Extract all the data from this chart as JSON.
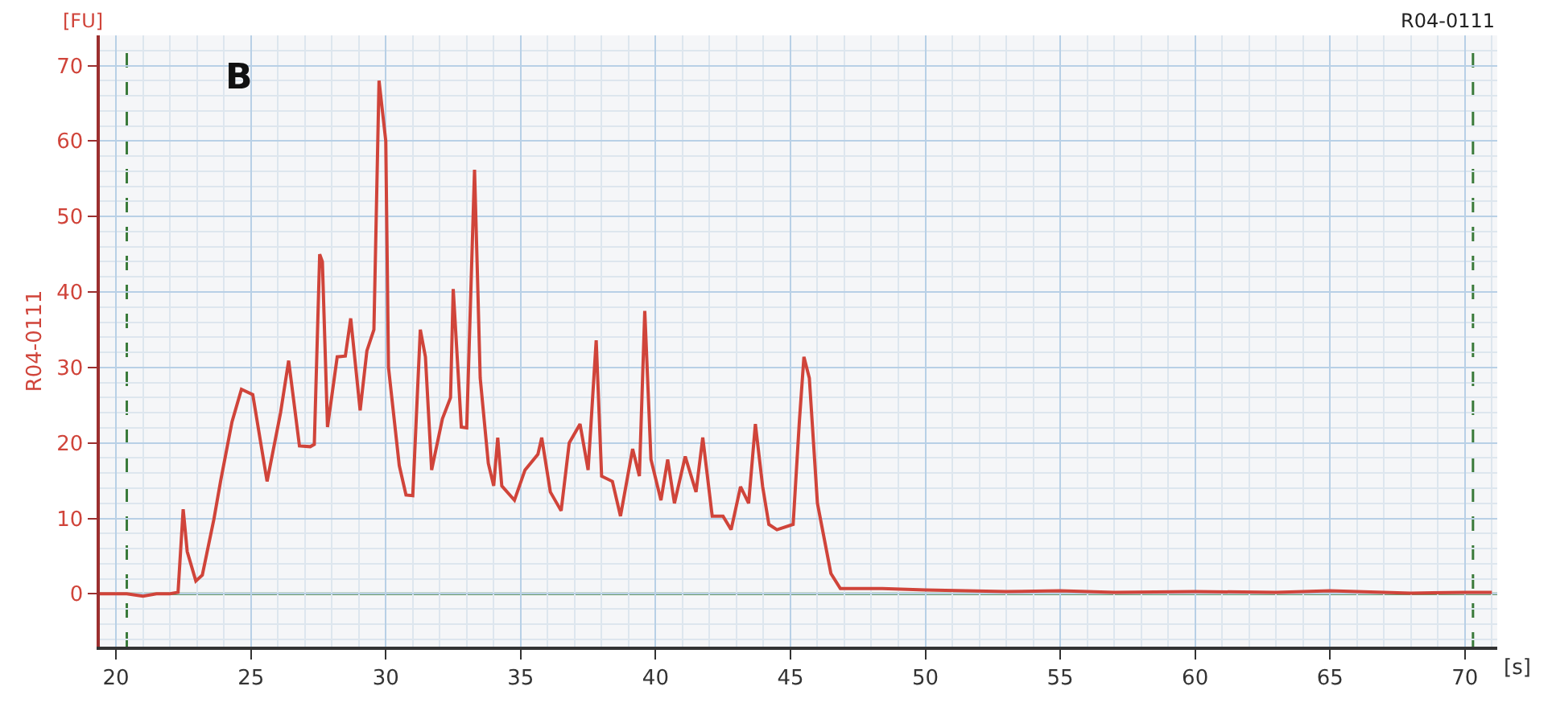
{
  "chart_data": {
    "type": "line",
    "xlabel": "[s]",
    "ylabel": "R04-0111",
    "annotations": [
      "[FU]",
      "B",
      "R04-0111"
    ],
    "series": [
      {
        "color": "#d0443a",
        "x": [
          19.4,
          20.4,
          21,
          21.5,
          22,
          22.3,
          22.49,
          22.64,
          22.96,
          23.2,
          23.63,
          23.88,
          24.3,
          24.65,
          25.07,
          25.6,
          26.1,
          26.4,
          26.8,
          27.2,
          27.35,
          27.55,
          27.65,
          27.84,
          28.2,
          28.5,
          28.7,
          29.05,
          29.3,
          29.56,
          29.75,
          30.0,
          30.1,
          30.5,
          30.75,
          31.0,
          31.28,
          31.47,
          31.7,
          32.1,
          32.4,
          32.5,
          32.8,
          33.0,
          33.29,
          33.4,
          33.5,
          33.8,
          34.0,
          34.15,
          34.3,
          34.77,
          35.16,
          35.64,
          35.78,
          36.1,
          36.5,
          36.8,
          37.2,
          37.5,
          37.8,
          38.0,
          38.4,
          38.7,
          39.15,
          39.4,
          39.6,
          39.83,
          40.2,
          40.45,
          40.7,
          41.1,
          41.5,
          41.75,
          42.1,
          42.5,
          42.8,
          43.15,
          43.45,
          43.7,
          43.97,
          44.2,
          44.5,
          45.1,
          45.33,
          45.5,
          45.7,
          46.0,
          46.5,
          46.85,
          48.4,
          50,
          53,
          55,
          57,
          60,
          63,
          65,
          68,
          70,
          71
        ],
        "values": [
          0,
          0,
          -0.3,
          0,
          0,
          0.2,
          11.2,
          5.6,
          1.7,
          2.5,
          9.9,
          15,
          22.8,
          27.1,
          26.4,
          14.9,
          24,
          30.9,
          19.6,
          19.5,
          19.8,
          45,
          44,
          22.1,
          31.4,
          31.5,
          36.5,
          24.3,
          32.2,
          35,
          68,
          60,
          30,
          17,
          13.1,
          13,
          35,
          31.4,
          16.4,
          23.2,
          26,
          40.4,
          22.1,
          22,
          56.2,
          42,
          28.6,
          17.3,
          14.3,
          20.7,
          14.3,
          12.4,
          16.4,
          18.5,
          20.7,
          13.5,
          11,
          20,
          22.5,
          16.4,
          33.6,
          15.6,
          14.9,
          10.3,
          19.2,
          15.6,
          37.5,
          17.8,
          12.4,
          17.8,
          12,
          18.2,
          13.5,
          20.7,
          10.3,
          10.3,
          8.5,
          14.2,
          12,
          22.5,
          14.2,
          9.2,
          8.5,
          9.2,
          22.8,
          31.4,
          28.6,
          12,
          2.7,
          0.7,
          0.7,
          0.5,
          0.3,
          0.4,
          0.2,
          0.3,
          0.2,
          0.4,
          0.1,
          0.2,
          0.2
        ]
      }
    ],
    "xlim": [
      19.4,
      71.2
    ],
    "ylim": [
      -7,
      74
    ],
    "xticks": [
      20,
      25,
      30,
      35,
      40,
      45,
      50,
      55,
      60,
      65,
      70
    ],
    "yticks": [
      0,
      10,
      20,
      30,
      40,
      50,
      60,
      70
    ],
    "grid": true,
    "marker": "none",
    "line_style": "solid",
    "ref_lines": [
      {
        "axis": "x",
        "value": 20.4,
        "color": "#3a7a3a",
        "line_style": "dashed"
      },
      {
        "axis": "x",
        "value": 70.3,
        "color": "#3a7a3a",
        "line_style": "dashed"
      },
      {
        "axis": "y",
        "value": 0,
        "color": "#3a7a3a",
        "line_style": "solid"
      }
    ]
  }
}
